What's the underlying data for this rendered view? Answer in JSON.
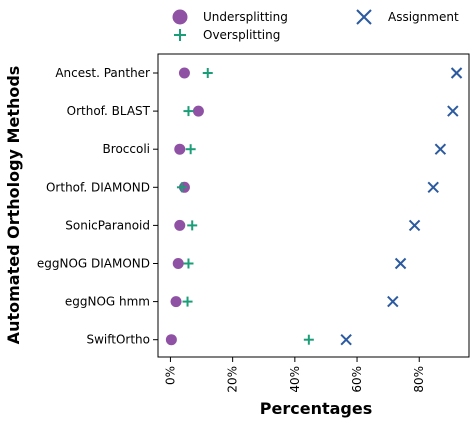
{
  "chart_data": {
    "type": "scatter",
    "title": "",
    "xlabel": "Percentages",
    "ylabel": "Automated Orthology Methods",
    "xlim": [
      -4,
      96
    ],
    "xticks": [
      0,
      20,
      40,
      60,
      80
    ],
    "xtick_labels": [
      "0%",
      "20%",
      "40%",
      "60%",
      "80%"
    ],
    "categories": [
      "Ancest. Panther",
      "Orthof. BLAST",
      "Broccoli",
      "Orthof. DIAMOND",
      "SonicParanoid",
      "eggNOG DIAMOND",
      "eggNOG hmm",
      "SwiftOrtho"
    ],
    "series": [
      {
        "name": "Undersplitting",
        "marker": "circle",
        "color": "#7B3294",
        "values": [
          4.5,
          9.0,
          3.0,
          4.5,
          3.0,
          2.5,
          1.8,
          0.3
        ]
      },
      {
        "name": "Oversplitting",
        "marker": "plus",
        "color": "#1B9E77",
        "values": [
          12.0,
          5.8,
          6.5,
          3.7,
          7.0,
          5.8,
          5.5,
          44.5
        ]
      },
      {
        "name": "Assignment",
        "marker": "x",
        "color": "#2C5AA0",
        "values": [
          92.0,
          90.8,
          86.8,
          84.5,
          78.5,
          74.0,
          71.5,
          56.5
        ]
      }
    ],
    "grid": false,
    "legend_position": "top"
  }
}
